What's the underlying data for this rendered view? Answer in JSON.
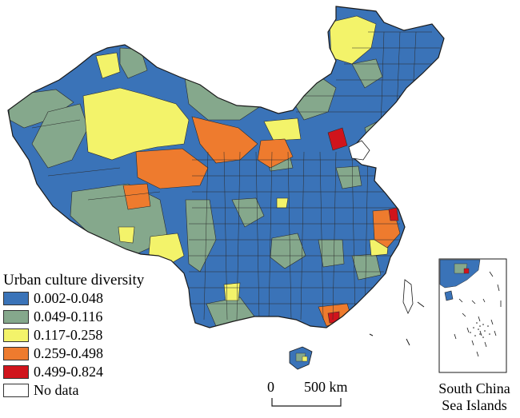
{
  "legend": {
    "title": "Urban culture diversity",
    "items": [
      {
        "label": "0.002-0.048",
        "color": "#3a73b8"
      },
      {
        "label": "0.049-0.116",
        "color": "#85a88c"
      },
      {
        "label": "0.117-0.258",
        "color": "#f3f36a"
      },
      {
        "label": "0.259-0.498",
        "color": "#ee7b2e"
      },
      {
        "label": "0.499-0.824",
        "color": "#d0141c"
      },
      {
        "label": "No data",
        "color": "#ffffff"
      }
    ]
  },
  "scale_bar": {
    "start_label": "0",
    "end_label": "500 km"
  },
  "inset": {
    "caption_line1": "South China",
    "caption_line2": "Sea Islands"
  },
  "colors": {
    "border": "#2b2b2b",
    "water": "#ffffff"
  }
}
